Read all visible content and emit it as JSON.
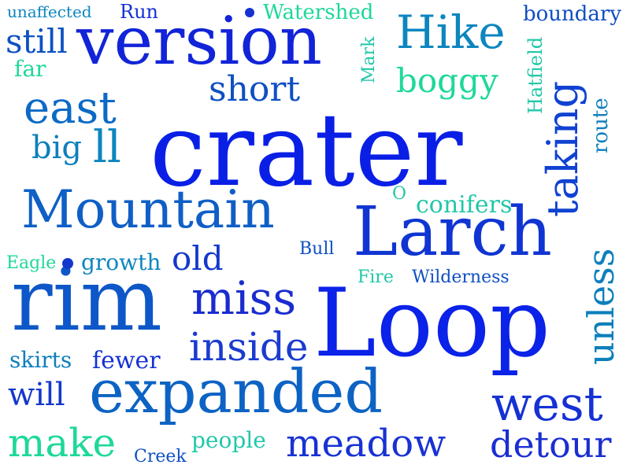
{
  "words": [
    {
      "text": "crater",
      "color": "#0a1fe6"
    },
    {
      "text": "Loop",
      "color": "#0b22e8"
    },
    {
      "text": "version",
      "color": "#1224d8"
    },
    {
      "text": "rim",
      "color": "#0e57c8"
    },
    {
      "text": "Larch",
      "color": "#1035d2"
    },
    {
      "text": "expanded",
      "color": "#0d63c4"
    },
    {
      "text": "Mountain",
      "color": "#0f5fc6"
    },
    {
      "text": "Hike",
      "color": "#0d86be"
    },
    {
      "text": "taking",
      "color": "#1042d2"
    },
    {
      "text": "miss",
      "color": "#1a2ccf"
    },
    {
      "text": "east",
      "color": "#0c6ac6"
    },
    {
      "text": "west",
      "color": "#1531d4"
    },
    {
      "text": "unless",
      "color": "#0d7fbc"
    },
    {
      "text": "inside",
      "color": "#1b3bd0"
    },
    {
      "text": "meadow",
      "color": "#1832d4"
    },
    {
      "text": "detour",
      "color": "#1a2ed2"
    },
    {
      "text": "short",
      "color": "#0f4fc2"
    },
    {
      "text": "boggy",
      "color": "#1ed89a"
    },
    {
      "text": "make",
      "color": "#1ed89a"
    },
    {
      "text": "old",
      "color": "#1438cc"
    },
    {
      "text": "still",
      "color": "#0d52c2"
    },
    {
      "text": "big",
      "color": "#0d7fbc"
    },
    {
      "text": "ll",
      "color": "#0d86be"
    },
    {
      "text": "will",
      "color": "#1438cc"
    },
    {
      "text": "conifers",
      "color": "#22c7a8"
    },
    {
      "text": "growth",
      "color": "#0d86be"
    },
    {
      "text": "route",
      "color": "#0d7fbc"
    },
    {
      "text": "Hatfield",
      "color": "#22c7a8"
    },
    {
      "text": "boundary",
      "color": "#0f4fc2"
    },
    {
      "text": "Watershed",
      "color": "#1ed89a"
    },
    {
      "text": "unaffected",
      "color": "#0d86be"
    },
    {
      "text": "Run",
      "color": "#1531d4"
    },
    {
      "text": "far",
      "color": "#1ed89a"
    },
    {
      "text": "Mark",
      "color": "#22c7a8"
    },
    {
      "text": "O",
      "color": "#22c7a8"
    },
    {
      "text": "Bull",
      "color": "#0f4fc2"
    },
    {
      "text": "Eagle",
      "color": "#1ed89a"
    },
    {
      "text": "Fire",
      "color": "#22c7a8"
    },
    {
      "text": "Wilderness",
      "color": "#0f4fc2"
    },
    {
      "text": "skirts",
      "color": "#0d7fbc"
    },
    {
      "text": "fewer",
      "color": "#1531d4"
    },
    {
      "text": "people",
      "color": "#22c7a8"
    },
    {
      "text": "Creek",
      "color": "#0f4fc2"
    }
  ],
  "dots": [
    {
      "color": "#1531d4"
    },
    {
      "color": "#1438cc"
    }
  ]
}
